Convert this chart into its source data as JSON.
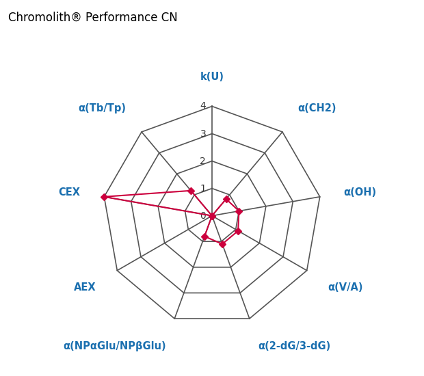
{
  "title": "Chromolith® Performance CN",
  "title_color": "#000000",
  "title_fontsize": 12,
  "axes_labels": [
    "k(U)",
    "α(CH2)",
    "α(OH)",
    "α(V/A)",
    "α(2-dG/3-dG)",
    "α(NPαGlu/NPβGlu)",
    "AEX",
    "CEX",
    "α(Tb/Tp)"
  ],
  "label_color": "#1a6faf",
  "label_fontsize": 10.5,
  "values": [
    0.0,
    0.8,
    1.0,
    1.1,
    1.1,
    0.8,
    0.0,
    4.0,
    1.2
  ],
  "max_val": 4,
  "num_rings": 4,
  "ring_label_fontsize": 10,
  "ring_label_color": "#333333",
  "data_color": "#cc003d",
  "data_linewidth": 1.5,
  "marker_style": "D",
  "marker_size": 5,
  "grid_color": "#555555",
  "grid_linewidth": 1.2,
  "bg_color": "#ffffff",
  "fig_width": 6.2,
  "fig_height": 5.5,
  "dpi": 100
}
